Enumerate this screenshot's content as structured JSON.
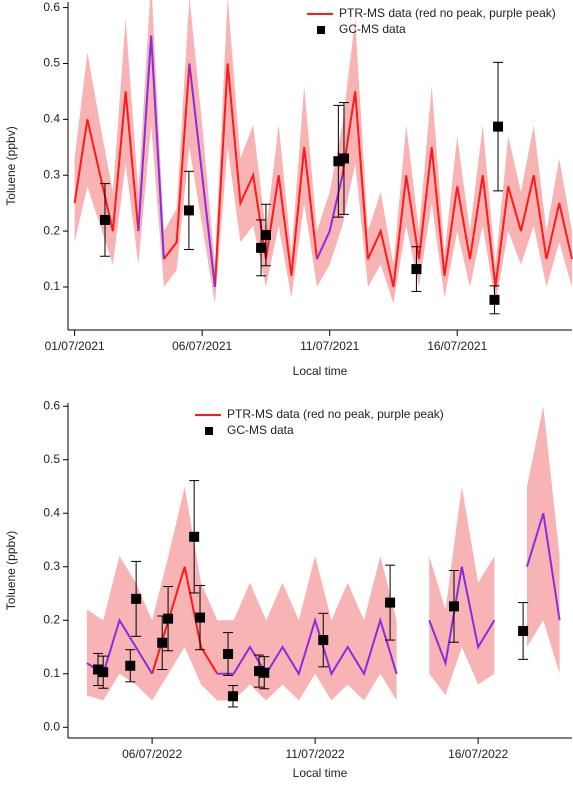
{
  "chart_data": [
    {
      "type": "line",
      "xlabel": "Local time",
      "ylabel": "Toluene (ppbv)",
      "legend": "upper right",
      "xlim": [
        0.74,
        20.5
      ],
      "ylim": [
        0.023,
        0.61
      ],
      "xticks": [
        {
          "value": 1,
          "label": "01/07/2021"
        },
        {
          "value": 6,
          "label": "06/07/2021"
        },
        {
          "value": 11,
          "label": "11/07/2021"
        },
        {
          "value": 16,
          "label": "16/07/2021"
        }
      ],
      "yticks": [
        0.1,
        0.2,
        0.3,
        0.4,
        0.5,
        0.6
      ],
      "x": [
        1.0,
        1.5,
        2.0,
        2.5,
        3.0,
        3.5,
        4.0,
        4.5,
        5.0,
        5.5,
        6.0,
        6.5,
        7.0,
        7.5,
        8.0,
        8.5,
        9.0,
        9.5,
        10.0,
        10.5,
        11.0,
        11.5,
        12.0,
        12.5,
        13.0,
        13.5,
        14.0,
        14.5,
        15.0,
        15.5,
        16.0,
        16.5,
        17.0,
        17.5,
        18.0,
        18.5,
        19.0,
        19.5,
        20.0,
        20.5
      ],
      "band": {
        "color": "#f8b4b4",
        "low": [
          0.18,
          0.28,
          0.21,
          0.14,
          0.32,
          0.14,
          0.39,
          0.1,
          0.13,
          0.35,
          0.21,
          0.07,
          0.35,
          0.18,
          0.21,
          0.1,
          0.21,
          0.08,
          0.25,
          0.1,
          0.14,
          0.21,
          0.32,
          0.1,
          0.14,
          0.07,
          0.21,
          0.1,
          0.25,
          0.08,
          0.2,
          0.1,
          0.21,
          0.07,
          0.2,
          0.14,
          0.21,
          0.1,
          0.18,
          0.1
        ],
        "high": [
          0.33,
          0.52,
          0.39,
          0.27,
          0.58,
          0.27,
          0.65,
          0.2,
          0.24,
          0.62,
          0.39,
          0.14,
          0.62,
          0.33,
          0.39,
          0.2,
          0.39,
          0.16,
          0.46,
          0.2,
          0.27,
          0.39,
          0.58,
          0.2,
          0.27,
          0.14,
          0.39,
          0.2,
          0.46,
          0.16,
          0.37,
          0.2,
          0.39,
          0.14,
          0.37,
          0.27,
          0.39,
          0.2,
          0.33,
          0.2
        ]
      },
      "series": [
        {
          "name": "PTR-MS data (red no peak, purple peak)",
          "color": "#ff1a1a",
          "values": [
            0.25,
            0.4,
            0.3,
            0.2,
            0.45,
            0.2,
            null,
            0.15,
            0.18,
            0.5,
            null,
            0.1,
            0.5,
            0.25,
            0.3,
            0.15,
            0.3,
            0.12,
            0.35,
            0.15,
            null,
            0.3,
            0.45,
            0.15,
            0.2,
            0.1,
            0.3,
            0.15,
            0.35,
            0.12,
            0.28,
            0.15,
            0.3,
            0.1,
            0.28,
            0.2,
            0.3,
            0.15,
            0.25,
            0.15
          ]
        },
        {
          "color": "#8a2be2",
          "values": [
            null,
            null,
            null,
            null,
            null,
            0.2,
            0.55,
            0.15,
            null,
            0.5,
            0.3,
            0.1,
            null,
            null,
            null,
            null,
            null,
            null,
            null,
            0.15,
            0.2,
            0.3,
            null,
            null,
            null,
            null,
            null,
            null,
            null,
            null,
            null,
            null,
            null,
            null,
            null,
            null,
            null,
            null,
            null,
            null
          ]
        },
        {
          "type": "scatter",
          "name": "GC-MS data",
          "color": "#000000",
          "x": [
            2.19,
            5.48,
            8.31,
            8.5,
            11.34,
            11.56,
            14.4,
            17.46,
            17.6
          ],
          "values": [
            0.22,
            0.237,
            0.17,
            0.193,
            0.325,
            0.33,
            0.132,
            0.077,
            0.387
          ],
          "errors": [
            0.065,
            0.07,
            0.05,
            0.055,
            0.1,
            0.1,
            0.04,
            0.025,
            0.115
          ]
        }
      ]
    },
    {
      "type": "line",
      "xlabel": "Local time",
      "ylabel": "Toluene (ppbv)",
      "legend": "upper center",
      "xlim": [
        3.42,
        18.88
      ],
      "ylim": [
        -0.02,
        0.606
      ],
      "xticks": [
        {
          "value": 6,
          "label": "06/07/2022"
        },
        {
          "value": 11,
          "label": "11/07/2022"
        },
        {
          "value": 16,
          "label": "16/07/2022"
        }
      ],
      "yticks": [
        {
          "value": 0,
          "label": "0.0"
        },
        0.1,
        0.2,
        0.3,
        0.4,
        0.5,
        0.6
      ],
      "x": [
        4.0,
        4.5,
        5.0,
        5.5,
        6.0,
        6.5,
        7.0,
        7.5,
        8.0,
        8.5,
        9.0,
        9.5,
        10.0,
        10.5,
        11.0,
        11.5,
        12.0,
        12.5,
        13.0,
        13.5,
        14.0,
        14.5,
        15.0,
        15.5,
        16.0,
        16.5,
        17.0,
        17.5,
        18.0,
        18.5
      ],
      "band": {
        "color": "#f8b4b4",
        "low": [
          0.06,
          0.05,
          0.1,
          0.08,
          0.05,
          0.1,
          0.15,
          0.08,
          0.05,
          0.05,
          0.08,
          0.05,
          0.08,
          0.05,
          0.1,
          0.05,
          0.08,
          0.05,
          0.1,
          0.05,
          null,
          0.1,
          0.06,
          0.15,
          0.08,
          0.1,
          null,
          0.15,
          0.2,
          0.1
        ],
        "high": [
          0.22,
          0.2,
          0.32,
          0.27,
          0.2,
          0.32,
          0.45,
          0.27,
          0.2,
          0.2,
          0.27,
          0.2,
          0.27,
          0.2,
          0.32,
          0.2,
          0.27,
          0.2,
          0.32,
          0.2,
          null,
          0.32,
          0.22,
          0.45,
          0.27,
          0.32,
          null,
          0.45,
          0.6,
          0.32
        ]
      },
      "series": [
        {
          "name": "PTR-MS data (red no peak, purple peak)",
          "color": "#ff1a1a",
          "values": [
            null,
            null,
            null,
            null,
            0.1,
            0.2,
            0.3,
            0.15,
            0.1,
            null,
            null,
            null,
            null,
            null,
            null,
            null,
            null,
            null,
            null,
            null,
            null,
            null,
            null,
            null,
            null,
            null,
            null,
            null,
            null,
            null
          ]
        },
        {
          "color": "#8a2be2",
          "values": [
            0.12,
            0.1,
            0.2,
            0.15,
            0.1,
            null,
            null,
            null,
            0.1,
            0.1,
            0.15,
            0.1,
            0.15,
            0.1,
            0.2,
            0.1,
            0.15,
            0.1,
            0.2,
            0.1,
            null,
            0.2,
            0.12,
            0.3,
            0.15,
            0.2,
            null,
            0.3,
            0.4,
            0.2
          ]
        },
        {
          "type": "scatter",
          "name": "GC-MS data",
          "color": "#000000",
          "x": [
            4.34,
            4.5,
            5.33,
            5.51,
            6.31,
            6.49,
            7.29,
            7.47,
            8.33,
            8.48,
            9.28,
            9.44,
            11.25,
            13.3,
            15.26,
            17.38
          ],
          "values": [
            0.108,
            0.103,
            0.115,
            0.24,
            0.158,
            0.203,
            0.356,
            0.205,
            0.137,
            0.058,
            0.105,
            0.102,
            0.163,
            0.233,
            0.226,
            0.18
          ],
          "errors": [
            0.03,
            0.03,
            0.03,
            0.07,
            0.05,
            0.06,
            0.105,
            0.06,
            0.04,
            0.02,
            0.03,
            0.03,
            0.05,
            0.07,
            0.067,
            0.053
          ]
        }
      ]
    }
  ]
}
